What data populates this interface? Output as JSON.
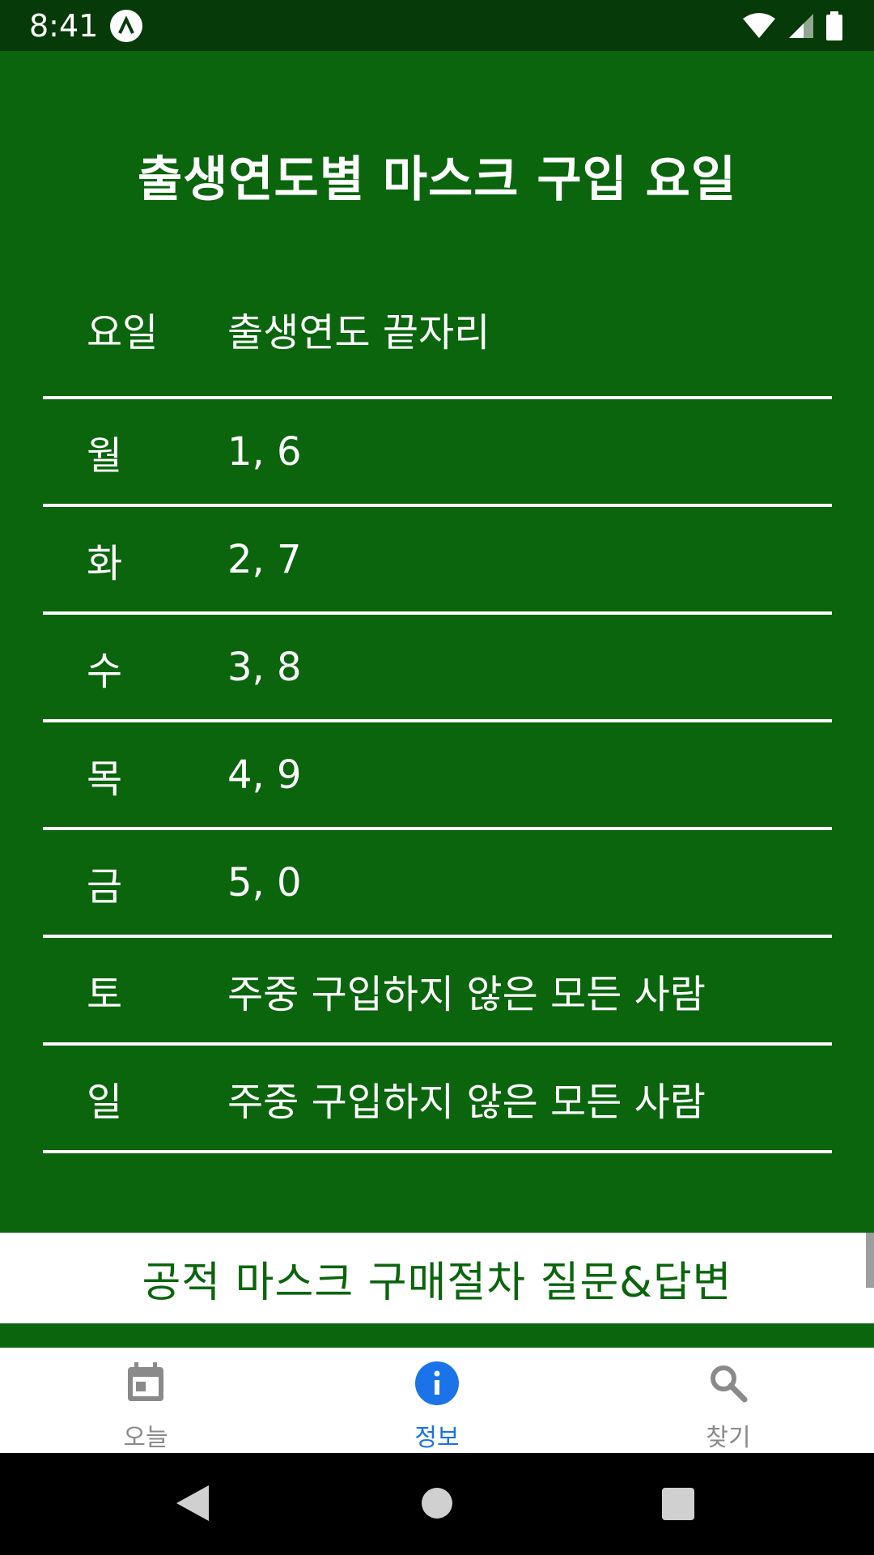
{
  "status_bar": {
    "time": "8:41",
    "icons": [
      "app-notification-icon",
      "wifi-icon",
      "signal-icon",
      "battery-icon"
    ]
  },
  "page": {
    "title": "출생연도별 마스크 구입 요일",
    "background_color": "#0a650d"
  },
  "table": {
    "header": {
      "day": "요일",
      "digits": "출생연도 끝자리"
    },
    "rows": [
      {
        "day": "월",
        "digits": "1, 6"
      },
      {
        "day": "화",
        "digits": "2, 7"
      },
      {
        "day": "수",
        "digits": "3, 8"
      },
      {
        "day": "목",
        "digits": "4, 9"
      },
      {
        "day": "금",
        "digits": "5, 0"
      },
      {
        "day": "토",
        "digits": "주중 구입하지 않은 모든 사람"
      },
      {
        "day": "일",
        "digits": "주중 구입하지 않은 모든 사람"
      }
    ]
  },
  "faq_button": {
    "label": "공적 마스크 구매절차 질문&답변"
  },
  "bottom_nav": {
    "items": [
      {
        "label": "오늘",
        "icon": "calendar-icon",
        "active": false
      },
      {
        "label": "정보",
        "icon": "info-icon",
        "active": true
      },
      {
        "label": "찾기",
        "icon": "search-icon",
        "active": false
      }
    ],
    "active_color": "#1a73e8",
    "inactive_color": "#8a8a8a"
  },
  "system_nav": {
    "icons": [
      "back-icon",
      "home-icon",
      "recents-icon"
    ]
  }
}
